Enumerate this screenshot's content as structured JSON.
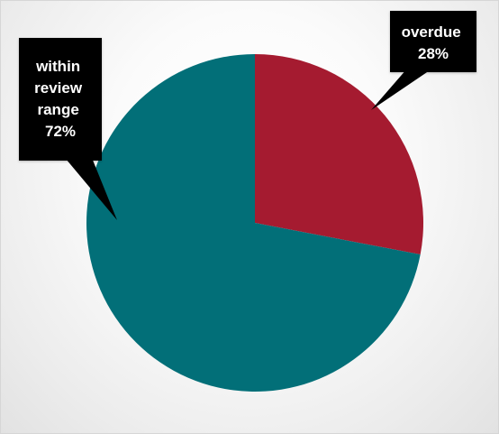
{
  "chart_data": {
    "type": "pie",
    "slices": [
      {
        "label": "overdue",
        "value": 28,
        "value_text": "28%",
        "color": "#a51b30"
      },
      {
        "label": "within review range",
        "value": 72,
        "value_text": "72%",
        "color": "#026f78"
      }
    ],
    "legend": "none",
    "callouts": [
      {
        "lines": [
          "overdue",
          "28%"
        ]
      },
      {
        "lines": [
          "within",
          "review",
          "range",
          "72%"
        ]
      }
    ],
    "callout_background": "#000000"
  }
}
